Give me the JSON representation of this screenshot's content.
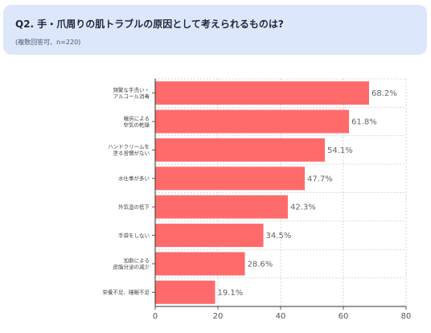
{
  "header": {
    "title": "Q2. 手・爪周りの肌トラブルの原因として考えられるものは?",
    "subtitle": "(複数回答可、n=220)"
  },
  "colors": {
    "bar": "#ff6b6b",
    "header_bg": "#dde7fb",
    "grid": "#cccccc"
  },
  "chart_data": {
    "type": "bar",
    "orientation": "horizontal",
    "categories": [
      [
        "頻繁な手洗い・",
        "アルコール消毒"
      ],
      [
        "暖房による",
        "空気の乾燥"
      ],
      [
        "ハンドクリームを",
        "塗る習慣がない"
      ],
      [
        "水仕事が多い"
      ],
      [
        "外気温の低下"
      ],
      [
        "手袋をしない"
      ],
      [
        "加齢による",
        "皮脂分泌の減少"
      ],
      [
        "栄養不足、睡眠不足"
      ]
    ],
    "values": [
      68.2,
      61.8,
      54.1,
      47.7,
      42.3,
      34.5,
      28.6,
      19.1
    ],
    "value_labels": [
      "68.2%",
      "61.8%",
      "54.1%",
      "47.7%",
      "42.3%",
      "34.5%",
      "28.6%",
      "19.1%"
    ],
    "xlim": [
      0,
      80
    ],
    "xticks": [
      0,
      20,
      40,
      60,
      80
    ],
    "grid": true
  }
}
